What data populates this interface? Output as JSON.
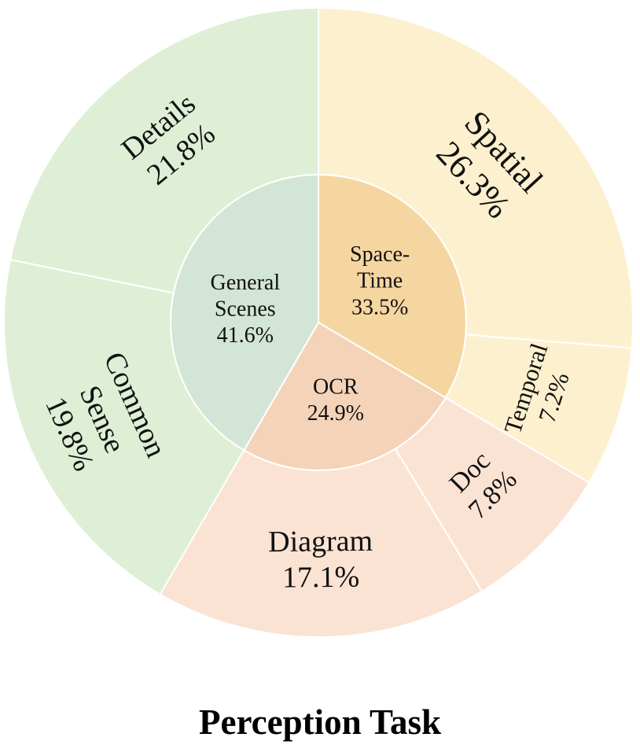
{
  "chart_data": {
    "type": "sunburst",
    "title": "Perception Task",
    "inner": [
      {
        "name": "Space-\nTime",
        "value": 33.5,
        "label": "33.5%",
        "color": "#F6D6A0"
      },
      {
        "name": "OCR",
        "value": 24.9,
        "label": "24.9%",
        "color": "#F5D3B8"
      },
      {
        "name": "General\nScenes",
        "value": 41.6,
        "label": "41.6%",
        "color": "#D3E5D6"
      }
    ],
    "outer": [
      {
        "name": "Spatial",
        "value": 26.3,
        "label": "26.3%",
        "parent": "Space-Time",
        "color": "#FDF0CF"
      },
      {
        "name": "Temporal",
        "value": 7.2,
        "label": "7.2%",
        "parent": "Space-Time",
        "color": "#FDF0CF"
      },
      {
        "name": "Doc",
        "value": 7.8,
        "label": "7.8%",
        "parent": "OCR",
        "color": "#FBE3D4"
      },
      {
        "name": "Diagram",
        "value": 17.1,
        "label": "17.1%",
        "parent": "OCR",
        "color": "#FBE3D4"
      },
      {
        "name": "Common\nSense",
        "value": 19.8,
        "label": "19.8%",
        "parent": "General Scenes",
        "color": "#DEEFD6"
      },
      {
        "name": "Details",
        "value": 21.8,
        "label": "21.8%",
        "parent": "General Scenes",
        "color": "#DEEFD6"
      }
    ]
  }
}
